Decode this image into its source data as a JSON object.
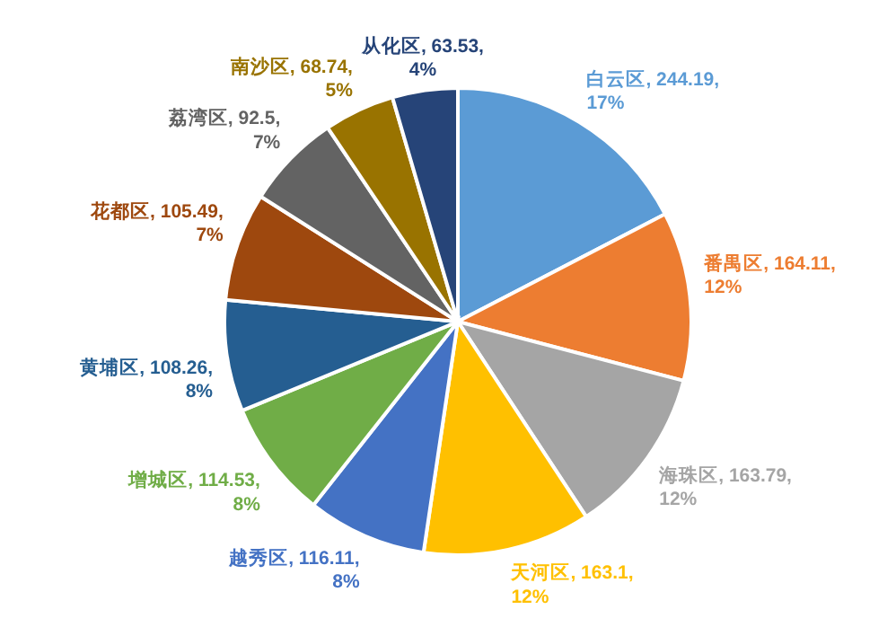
{
  "chart_data": {
    "type": "pie",
    "categories": [
      "白云区",
      "番禺区",
      "海珠区",
      "天河区",
      "越秀区",
      "增城区",
      "黄埔区",
      "花都区",
      "荔湾区",
      "南沙区",
      "从化区"
    ],
    "values": [
      244.19,
      164.11,
      163.79,
      163.1,
      116.11,
      114.53,
      108.26,
      105.49,
      92.5,
      68.74,
      63.53
    ],
    "value_labels": [
      "244.19, 17%",
      "164.11, 12%",
      "163.79, 12%",
      "163.1, 12%",
      "116.11, 8%",
      "114.53, 8%",
      "108.26, 8%",
      "105.49, 7%",
      "92.5, 7%",
      "68.74, 5%",
      "63.53, 4%"
    ],
    "colors": [
      "#5b9bd5",
      "#ed7d31",
      "#a5a5a5",
      "#ffc000",
      "#4472c4",
      "#70ad47",
      "#255e91",
      "#9e480e",
      "#636363",
      "#997300",
      "#264478"
    ],
    "legend": false
  }
}
